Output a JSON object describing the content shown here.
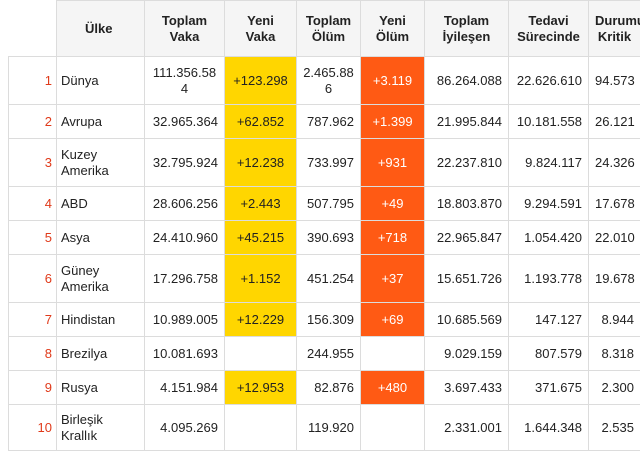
{
  "headers": {
    "country": "Ülke",
    "total_cases": "Toplam\nVaka",
    "new_cases": "Yeni\nVaka",
    "total_deaths": "Toplam\nÖlüm",
    "new_deaths": "Yeni\nÖlüm",
    "total_recovered": "Toplam\nİyileşen",
    "active": "Tedavi\nSürecinde",
    "critical": "Durumu\nKritik"
  },
  "rows": [
    {
      "rank": "1",
      "country": "Dünya",
      "total_cases": "111.356.584",
      "new_cases": "+123.298",
      "total_deaths": "2.465.886",
      "new_deaths": "+3.119",
      "total_recovered": "86.264.088",
      "active": "22.626.610",
      "critical": "94.573"
    },
    {
      "rank": "2",
      "country": "Avrupa",
      "total_cases": "32.965.364",
      "new_cases": "+62.852",
      "total_deaths": "787.962",
      "new_deaths": "+1.399",
      "total_recovered": "21.995.844",
      "active": "10.181.558",
      "critical": "26.121"
    },
    {
      "rank": "3",
      "country": "Kuzey Amerika",
      "total_cases": "32.795.924",
      "new_cases": "+12.238",
      "total_deaths": "733.997",
      "new_deaths": "+931",
      "total_recovered": "22.237.810",
      "active": "9.824.117",
      "critical": "24.326"
    },
    {
      "rank": "4",
      "country": "ABD",
      "total_cases": "28.606.256",
      "new_cases": "+2.443",
      "total_deaths": "507.795",
      "new_deaths": "+49",
      "total_recovered": "18.803.870",
      "active": "9.294.591",
      "critical": "17.678"
    },
    {
      "rank": "5",
      "country": "Asya",
      "total_cases": "24.410.960",
      "new_cases": "+45.215",
      "total_deaths": "390.693",
      "new_deaths": "+718",
      "total_recovered": "22.965.847",
      "active": "1.054.420",
      "critical": "22.010"
    },
    {
      "rank": "6",
      "country": "Güney Amerika",
      "total_cases": "17.296.758",
      "new_cases": "+1.152",
      "total_deaths": "451.254",
      "new_deaths": "+37",
      "total_recovered": "15.651.726",
      "active": "1.193.778",
      "critical": "19.678"
    },
    {
      "rank": "7",
      "country": "Hindistan",
      "total_cases": "10.989.005",
      "new_cases": "+12.229",
      "total_deaths": "156.309",
      "new_deaths": "+69",
      "total_recovered": "10.685.569",
      "active": "147.127",
      "critical": "8.944"
    },
    {
      "rank": "8",
      "country": "Brezilya",
      "total_cases": "10.081.693",
      "new_cases": "",
      "total_deaths": "244.955",
      "new_deaths": "",
      "total_recovered": "9.029.159",
      "active": "807.579",
      "critical": "8.318"
    },
    {
      "rank": "9",
      "country": "Rusya",
      "total_cases": "4.151.984",
      "new_cases": "+12.953",
      "total_deaths": "82.876",
      "new_deaths": "+480",
      "total_recovered": "3.697.433",
      "active": "371.675",
      "critical": "2.300"
    },
    {
      "rank": "10",
      "country": "Birleşik Krallık",
      "total_cases": "4.095.269",
      "new_cases": "",
      "total_deaths": "119.920",
      "new_deaths": "",
      "total_recovered": "2.331.001",
      "active": "1.644.348",
      "critical": "2.535"
    }
  ],
  "colors": {
    "rank_text": "#e03a1a",
    "new_cases_bg": "#ffd600",
    "new_deaths_bg": "#ff5a14"
  }
}
